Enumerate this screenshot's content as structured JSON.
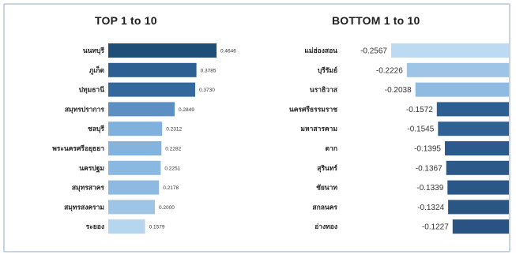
{
  "chart_data": [
    {
      "type": "bar",
      "orientation": "horizontal",
      "title": "TOP 1 to 10",
      "categories": [
        "นนทบุรี",
        "ภูเก็ต",
        "ปทุมธานี",
        "สมุทรปราการ",
        "ชลบุรี",
        "พระนครศรีอยุธยา",
        "นครปฐม",
        "สมุทรสาคร",
        "สมุทรสงคราม",
        "ระยอง"
      ],
      "values": [
        0.4646,
        0.3785,
        0.373,
        0.2849,
        0.2312,
        0.2282,
        0.2251,
        0.2178,
        0.2,
        0.1579
      ],
      "xlim": [
        0,
        0.4646
      ],
      "colors": [
        "#1f4e79",
        "#2e5f92",
        "#34689d",
        "#5d8fc2",
        "#80b1dd",
        "#84b4de",
        "#89b8e0",
        "#8ebae1",
        "#9fc5e6",
        "#b6d6ef"
      ],
      "legend": "none",
      "grid": false
    },
    {
      "type": "bar",
      "orientation": "horizontal",
      "title": "BOTTOM 1 to 10",
      "categories": [
        "แม่ฮ่องสอน",
        "บุรีรัมย์",
        "นราธิวาส",
        "นครศรีธรรมราช",
        "มหาสารคาม",
        "ตาก",
        "สุรินทร์",
        "ชัยนาท",
        "สกลนคร",
        "อ่างทอง"
      ],
      "values": [
        -0.2567,
        -0.2226,
        -0.2038,
        -0.1572,
        -0.1545,
        -0.1395,
        -0.1367,
        -0.1339,
        -0.1324,
        -0.1227
      ],
      "xlim": [
        -0.2567,
        0
      ],
      "colors": [
        "#bcdaf2",
        "#9fc5e6",
        "#8fbbe2",
        "#2e5f92",
        "#2f6195",
        "#2c5a8c",
        "#2b598a",
        "#2a5788",
        "#2a5686",
        "#285382"
      ],
      "legend": "none",
      "grid": false
    }
  ]
}
